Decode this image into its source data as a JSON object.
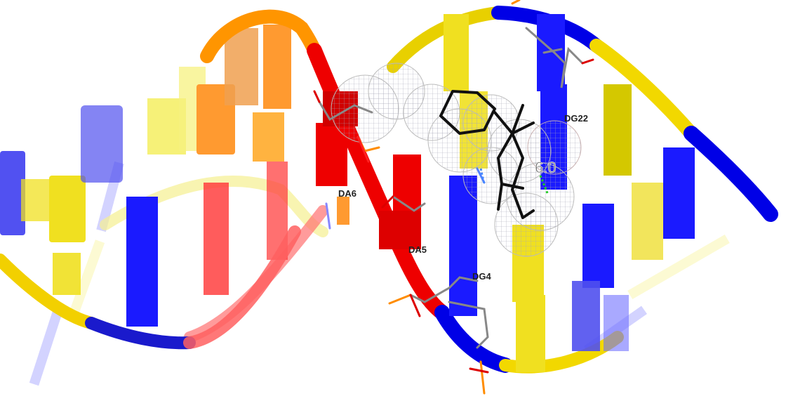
{
  "scene": {
    "colors": {
      "adenine": "#ff1a1a",
      "guanine": "#1a1aff",
      "thymine": "#f0e020",
      "cytosine": "#ff9a30",
      "ligand": "#111111",
      "phosphate": "#ff8c00",
      "backbone_red": "#ee0000",
      "backbone_blue": "#0000e6",
      "backbone_yellow": "#f2d800",
      "hbond": "#22cc22"
    },
    "labels": {
      "da6": "DA6",
      "da5": "DA5",
      "dg4": "DG4",
      "dg22": "DG22"
    },
    "distance": "6.0"
  }
}
